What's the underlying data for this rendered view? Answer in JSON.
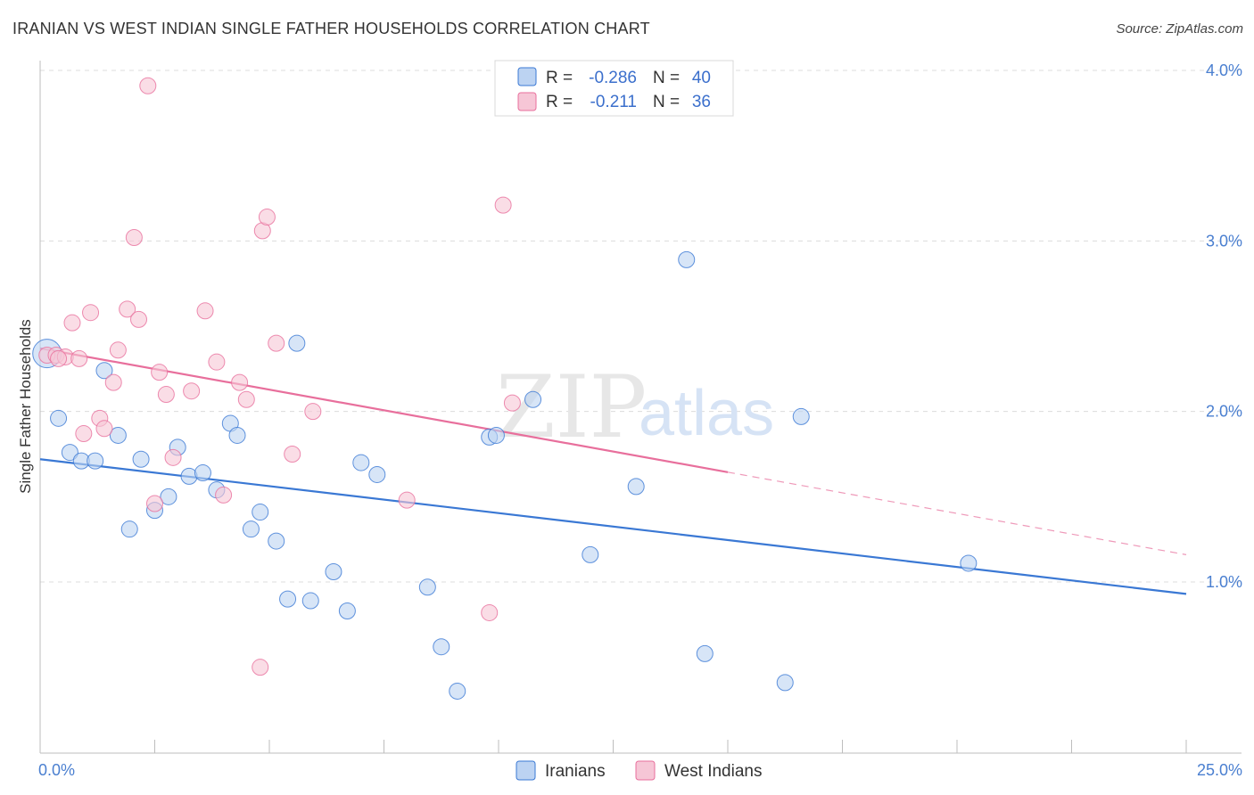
{
  "title": "IRANIAN VS WEST INDIAN SINGLE FATHER HOUSEHOLDS CORRELATION CHART",
  "source": "Source: ZipAtlas.com",
  "watermark": {
    "zip": "ZIP",
    "atlas": "atlas"
  },
  "colors": {
    "iranians": "#3a78d4",
    "west_indians": "#e86f9c",
    "iranians_fill": "#bcd3f2",
    "west_indians_fill": "#f6c6d6"
  },
  "legend": {
    "rows": [
      {
        "r_label": "R =",
        "r_value": "-0.286",
        "n_label": "N =",
        "n_value": "40"
      },
      {
        "r_label": "R =",
        "r_value": "-0.211",
        "n_label": "N =",
        "n_value": "36"
      }
    ]
  },
  "chart_data": {
    "type": "scatter",
    "title": "IRANIAN VS WEST INDIAN SINGLE FATHER HOUSEHOLDS CORRELATION CHART",
    "xlabel": "",
    "ylabel": "Single Father Households",
    "xlim": [
      0,
      25
    ],
    "ylim": [
      0,
      4.1
    ],
    "x_tick_labels": [
      "0.0%",
      "25.0%"
    ],
    "y_ticks": [
      1.0,
      2.0,
      3.0,
      4.0
    ],
    "y_tick_labels": [
      "1.0%",
      "2.0%",
      "3.0%",
      "4.0%"
    ],
    "grid": true,
    "legend_position": "bottom-center",
    "series": [
      {
        "name": "Iranians",
        "r": -0.286,
        "n": 40,
        "trend": {
          "x0": 0.0,
          "y0": 1.72,
          "x1": 25.0,
          "y1": 0.93,
          "solid_until": 25.0
        },
        "points": [
          {
            "x": 0.15,
            "y": 2.34,
            "big": true
          },
          {
            "x": 0.4,
            "y": 1.96
          },
          {
            "x": 0.65,
            "y": 1.76
          },
          {
            "x": 0.9,
            "y": 1.71
          },
          {
            "x": 1.2,
            "y": 1.71
          },
          {
            "x": 1.4,
            "y": 2.24
          },
          {
            "x": 1.7,
            "y": 1.86
          },
          {
            "x": 1.95,
            "y": 1.31
          },
          {
            "x": 2.2,
            "y": 1.72
          },
          {
            "x": 2.5,
            "y": 1.42
          },
          {
            "x": 2.8,
            "y": 1.5
          },
          {
            "x": 3.0,
            "y": 1.79
          },
          {
            "x": 3.25,
            "y": 1.62
          },
          {
            "x": 3.55,
            "y": 1.64
          },
          {
            "x": 3.85,
            "y": 1.54
          },
          {
            "x": 4.15,
            "y": 1.93
          },
          {
            "x": 4.3,
            "y": 1.86
          },
          {
            "x": 4.6,
            "y": 1.31
          },
          {
            "x": 4.8,
            "y": 1.41
          },
          {
            "x": 5.15,
            "y": 1.24
          },
          {
            "x": 5.4,
            "y": 0.9
          },
          {
            "x": 5.6,
            "y": 2.4
          },
          {
            "x": 5.9,
            "y": 0.89
          },
          {
            "x": 6.4,
            "y": 1.06
          },
          {
            "x": 6.7,
            "y": 0.83
          },
          {
            "x": 7.0,
            "y": 1.7
          },
          {
            "x": 7.35,
            "y": 1.63
          },
          {
            "x": 8.45,
            "y": 0.97
          },
          {
            "x": 8.75,
            "y": 0.62
          },
          {
            "x": 9.1,
            "y": 0.36
          },
          {
            "x": 9.8,
            "y": 1.85
          },
          {
            "x": 9.95,
            "y": 1.86
          },
          {
            "x": 10.75,
            "y": 2.07
          },
          {
            "x": 12.0,
            "y": 1.16
          },
          {
            "x": 13.0,
            "y": 1.56
          },
          {
            "x": 14.1,
            "y": 2.89
          },
          {
            "x": 14.5,
            "y": 0.58
          },
          {
            "x": 16.25,
            "y": 0.41
          },
          {
            "x": 16.6,
            "y": 1.97
          },
          {
            "x": 20.25,
            "y": 1.11
          }
        ]
      },
      {
        "name": "West Indians",
        "r": -0.211,
        "n": 36,
        "trend": {
          "x0": 0.0,
          "y0": 2.37,
          "x1": 25.0,
          "y1": 1.16,
          "solid_until": 15.0
        },
        "points": [
          {
            "x": 0.15,
            "y": 2.33
          },
          {
            "x": 0.35,
            "y": 2.33
          },
          {
            "x": 0.55,
            "y": 2.32
          },
          {
            "x": 0.7,
            "y": 2.52
          },
          {
            "x": 0.85,
            "y": 2.31
          },
          {
            "x": 0.95,
            "y": 1.87
          },
          {
            "x": 1.1,
            "y": 2.58
          },
          {
            "x": 1.3,
            "y": 1.96
          },
          {
            "x": 1.4,
            "y": 1.9
          },
          {
            "x": 1.6,
            "y": 2.17
          },
          {
            "x": 1.7,
            "y": 2.36
          },
          {
            "x": 1.9,
            "y": 2.6
          },
          {
            "x": 2.05,
            "y": 3.02
          },
          {
            "x": 2.15,
            "y": 2.54
          },
          {
            "x": 2.35,
            "y": 3.91
          },
          {
            "x": 2.5,
            "y": 1.46
          },
          {
            "x": 2.6,
            "y": 2.23
          },
          {
            "x": 2.75,
            "y": 2.1
          },
          {
            "x": 2.9,
            "y": 1.73
          },
          {
            "x": 3.3,
            "y": 2.12
          },
          {
            "x": 3.6,
            "y": 2.59
          },
          {
            "x": 3.85,
            "y": 2.29
          },
          {
            "x": 4.0,
            "y": 1.51
          },
          {
            "x": 4.35,
            "y": 2.17
          },
          {
            "x": 4.5,
            "y": 2.07
          },
          {
            "x": 4.8,
            "y": 0.5
          },
          {
            "x": 4.85,
            "y": 3.06
          },
          {
            "x": 4.95,
            "y": 3.14
          },
          {
            "x": 5.15,
            "y": 2.4
          },
          {
            "x": 5.5,
            "y": 1.75
          },
          {
            "x": 5.95,
            "y": 2.0
          },
          {
            "x": 8.0,
            "y": 1.48
          },
          {
            "x": 9.8,
            "y": 0.82
          },
          {
            "x": 10.1,
            "y": 3.21
          },
          {
            "x": 10.3,
            "y": 2.05
          },
          {
            "x": 0.4,
            "y": 2.31
          }
        ]
      }
    ]
  }
}
